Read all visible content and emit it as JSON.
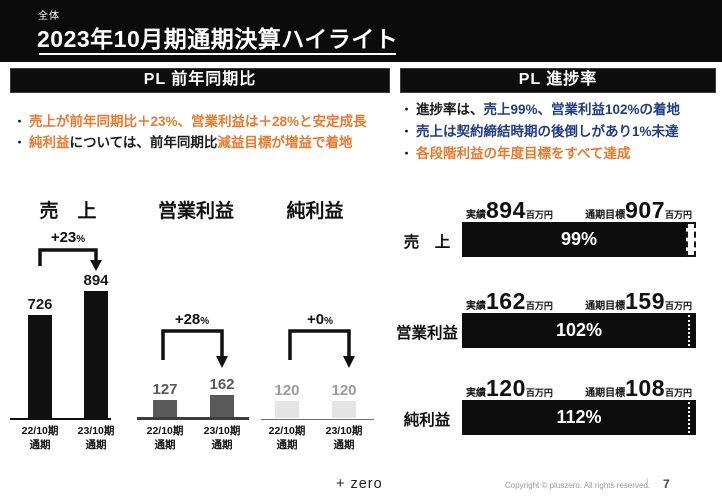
{
  "colors": {
    "accent_orange": "#E8792F",
    "accent_navy": "#1F3C85",
    "banner_black": "#0B0B0B",
    "bar_black": "#0D0D0D",
    "text_dark": "#1A1A1A",
    "gray_mid": "#595959",
    "gray_light": "#9B9B9B"
  },
  "ui": {
    "bullet_char": "・"
  },
  "header": {
    "tag": "全体",
    "title": "2023年10月期通期決算ハイライト"
  },
  "left_panel": {
    "header": "PL 前年同期比",
    "bullets": [
      {
        "segments": [
          {
            "text": "売上が前年同期比＋23%、営業利益は＋28%と安定成長",
            "color": "orange"
          }
        ]
      },
      {
        "segments": [
          {
            "text": "純利益",
            "color": "orange"
          },
          {
            "text": "については、前年同期比",
            "color": "black"
          },
          {
            "text": "減益目標が増益で着地",
            "color": "orange"
          }
        ]
      }
    ]
  },
  "right_panel": {
    "header": "PL 進捗率",
    "bullets": [
      {
        "segments": [
          {
            "text": "進捗率は、",
            "color": "black"
          },
          {
            "text": "売上99%、営業利益102%の着地",
            "color": "navy"
          }
        ]
      },
      {
        "segments": [
          {
            "text": "売上は契約締結時期の後倒しがあり1%未達",
            "color": "navy"
          }
        ]
      },
      {
        "segments": [
          {
            "text": "各段階利益の年度目標をすべて達成",
            "color": "orange"
          }
        ]
      }
    ]
  },
  "chart_data": [
    {
      "type": "bar",
      "title": "売　上",
      "unit": "百万円",
      "categories": [
        [
          "22/10期",
          "通期"
        ],
        [
          "23/10期",
          "通期"
        ]
      ],
      "values": [
        726,
        894
      ],
      "delta": "+23",
      "percent_sign": "%",
      "bar_color": "#111111"
    },
    {
      "type": "bar",
      "title": "営業利益",
      "unit": "百万円",
      "categories": [
        [
          "22/10期",
          "通期"
        ],
        [
          "23/10期",
          "通期"
        ]
      ],
      "values": [
        127,
        162
      ],
      "delta": "+28",
      "percent_sign": "%",
      "bar_color": "#595959"
    },
    {
      "type": "bar",
      "title": "純利益",
      "unit": "百万円",
      "categories": [
        [
          "22/10期",
          "通期"
        ],
        [
          "23/10期",
          "通期"
        ]
      ],
      "values": [
        120,
        120
      ],
      "delta": "+0",
      "percent_sign": "%",
      "bar_color": "#E4E4E4"
    },
    {
      "type": "progress",
      "legend": {
        "actual": "実績",
        "target": "通期目標",
        "unit": "百万円"
      },
      "rows": [
        {
          "label": "売　上",
          "actual": 894,
          "target": 907,
          "percent": "99%",
          "reached": false
        },
        {
          "label": "営業利益",
          "actual": 162,
          "target": 159,
          "percent": "102%",
          "reached": true
        },
        {
          "label": "純利益",
          "actual": 120,
          "target": 108,
          "percent": "112%",
          "reached": true
        }
      ]
    }
  ],
  "footer": {
    "logo": "+ zero",
    "copyright": "Copyright © pluszero. All rights reserved.",
    "separator": "|",
    "page": "7"
  }
}
